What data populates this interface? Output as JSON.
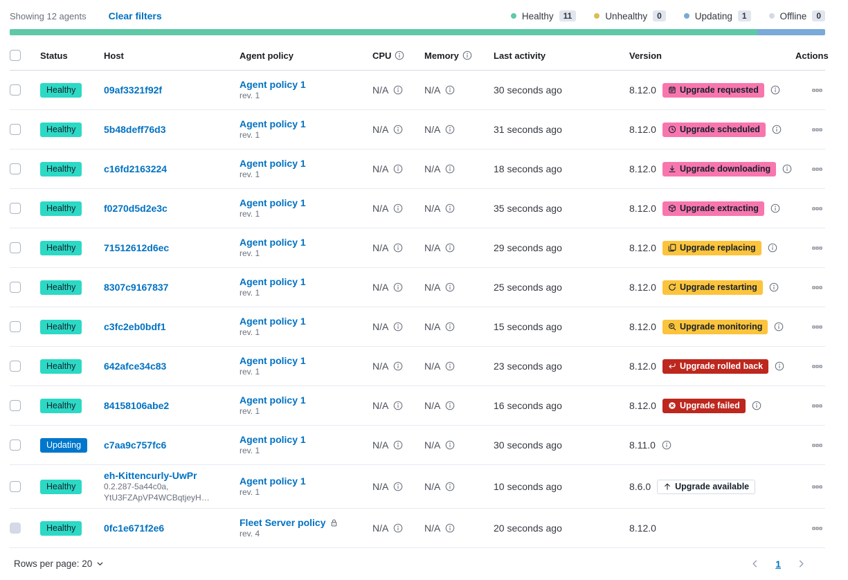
{
  "toolbar": {
    "showing_text": "Showing 12 agents",
    "clear_filters_label": "Clear filters",
    "legend": [
      {
        "label": "Healthy",
        "count": "11",
        "dot_color": "#5FC9A7"
      },
      {
        "label": "Unhealthy",
        "count": "0",
        "dot_color": "#D6BF57"
      },
      {
        "label": "Updating",
        "count": "1",
        "dot_color": "#79AAD9"
      },
      {
        "label": "Offline",
        "count": "0",
        "dot_color": "#D3DAE6"
      }
    ]
  },
  "health_bar": {
    "segments": [
      {
        "status": "healthy",
        "color": "#5FC9A7",
        "weight": 11
      },
      {
        "status": "updating",
        "color": "#79AAD9",
        "weight": 1
      }
    ]
  },
  "icons": {
    "used": [
      "info-icon",
      "calendar-icon",
      "clock-icon",
      "download-icon",
      "package-icon",
      "copy-icon",
      "refresh-icon",
      "inspect-icon",
      "return-icon",
      "error-icon",
      "arrow-up-icon",
      "lock-icon",
      "boxes-horizontal-icon",
      "chevron-down-icon",
      "chevron-left-icon",
      "chevron-right-icon"
    ]
  },
  "colors": {
    "link": "#0071C2",
    "healthy_badge": "#2CD9C5",
    "updating_badge": "#0077CC",
    "upgrade_pink": "#F876AE",
    "upgrade_yellow": "#FCC43C",
    "upgrade_red": "#BD271E"
  },
  "table": {
    "headers": [
      {
        "label": "Status"
      },
      {
        "label": "Host"
      },
      {
        "label": "Agent policy"
      },
      {
        "label": "CPU",
        "info": true
      },
      {
        "label": "Memory",
        "info": true
      },
      {
        "label": "Last activity"
      },
      {
        "label": "Version"
      },
      {
        "label": "Actions"
      }
    ],
    "rows": [
      {
        "status": {
          "label": "Healthy",
          "type": "healthy"
        },
        "host": {
          "name": "09af3321f92f",
          "sub": []
        },
        "policy": {
          "name": "Agent policy 1",
          "revision": "rev. 1",
          "locked": false
        },
        "cpu": "N/A",
        "memory": "N/A",
        "last_activity": "30 seconds ago",
        "version": "8.12.0",
        "version_info": false,
        "upgrade": {
          "label": "Upgrade requested",
          "style": "pink",
          "icon": "calendar"
        },
        "upgrade_info": true,
        "checkbox_disabled": false
      },
      {
        "status": {
          "label": "Healthy",
          "type": "healthy"
        },
        "host": {
          "name": "5b48deff76d3",
          "sub": []
        },
        "policy": {
          "name": "Agent policy 1",
          "revision": "rev. 1",
          "locked": false
        },
        "cpu": "N/A",
        "memory": "N/A",
        "last_activity": "31 seconds ago",
        "version": "8.12.0",
        "version_info": false,
        "upgrade": {
          "label": "Upgrade scheduled",
          "style": "pink",
          "icon": "clock"
        },
        "upgrade_info": true,
        "checkbox_disabled": false
      },
      {
        "status": {
          "label": "Healthy",
          "type": "healthy"
        },
        "host": {
          "name": "c16fd2163224",
          "sub": []
        },
        "policy": {
          "name": "Agent policy 1",
          "revision": "rev. 1",
          "locked": false
        },
        "cpu": "N/A",
        "memory": "N/A",
        "last_activity": "18 seconds ago",
        "version": "8.12.0",
        "version_info": false,
        "upgrade": {
          "label": "Upgrade downloading",
          "style": "pink",
          "icon": "download"
        },
        "upgrade_info": true,
        "checkbox_disabled": false
      },
      {
        "status": {
          "label": "Healthy",
          "type": "healthy"
        },
        "host": {
          "name": "f0270d5d2e3c",
          "sub": []
        },
        "policy": {
          "name": "Agent policy 1",
          "revision": "rev. 1",
          "locked": false
        },
        "cpu": "N/A",
        "memory": "N/A",
        "last_activity": "35 seconds ago",
        "version": "8.12.0",
        "version_info": false,
        "upgrade": {
          "label": "Upgrade extracting",
          "style": "pink",
          "icon": "package"
        },
        "upgrade_info": true,
        "checkbox_disabled": false
      },
      {
        "status": {
          "label": "Healthy",
          "type": "healthy"
        },
        "host": {
          "name": "71512612d6ec",
          "sub": []
        },
        "policy": {
          "name": "Agent policy 1",
          "revision": "rev. 1",
          "locked": false
        },
        "cpu": "N/A",
        "memory": "N/A",
        "last_activity": "29 seconds ago",
        "version": "8.12.0",
        "version_info": false,
        "upgrade": {
          "label": "Upgrade replacing",
          "style": "yellow",
          "icon": "copy"
        },
        "upgrade_info": true,
        "checkbox_disabled": false
      },
      {
        "status": {
          "label": "Healthy",
          "type": "healthy"
        },
        "host": {
          "name": "8307c9167837",
          "sub": []
        },
        "policy": {
          "name": "Agent policy 1",
          "revision": "rev. 1",
          "locked": false
        },
        "cpu": "N/A",
        "memory": "N/A",
        "last_activity": "25 seconds ago",
        "version": "8.12.0",
        "version_info": false,
        "upgrade": {
          "label": "Upgrade restarting",
          "style": "yellow",
          "icon": "refresh"
        },
        "upgrade_info": true,
        "checkbox_disabled": false
      },
      {
        "status": {
          "label": "Healthy",
          "type": "healthy"
        },
        "host": {
          "name": "c3fc2eb0bdf1",
          "sub": []
        },
        "policy": {
          "name": "Agent policy 1",
          "revision": "rev. 1",
          "locked": false
        },
        "cpu": "N/A",
        "memory": "N/A",
        "last_activity": "15 seconds ago",
        "version": "8.12.0",
        "version_info": false,
        "upgrade": {
          "label": "Upgrade monitoring",
          "style": "yellow",
          "icon": "inspect"
        },
        "upgrade_info": true,
        "checkbox_disabled": false
      },
      {
        "status": {
          "label": "Healthy",
          "type": "healthy"
        },
        "host": {
          "name": "642afce34c83",
          "sub": []
        },
        "policy": {
          "name": "Agent policy 1",
          "revision": "rev. 1",
          "locked": false
        },
        "cpu": "N/A",
        "memory": "N/A",
        "last_activity": "23 seconds ago",
        "version": "8.12.0",
        "version_info": false,
        "upgrade": {
          "label": "Upgrade rolled back",
          "style": "red",
          "icon": "return"
        },
        "upgrade_info": true,
        "checkbox_disabled": false
      },
      {
        "status": {
          "label": "Healthy",
          "type": "healthy"
        },
        "host": {
          "name": "84158106abe2",
          "sub": []
        },
        "policy": {
          "name": "Agent policy 1",
          "revision": "rev. 1",
          "locked": false
        },
        "cpu": "N/A",
        "memory": "N/A",
        "last_activity": "16 seconds ago",
        "version": "8.12.0",
        "version_info": false,
        "upgrade": {
          "label": "Upgrade failed",
          "style": "red",
          "icon": "error"
        },
        "upgrade_info": true,
        "checkbox_disabled": false
      },
      {
        "status": {
          "label": "Updating",
          "type": "updating"
        },
        "host": {
          "name": "c7aa9c757fc6",
          "sub": []
        },
        "policy": {
          "name": "Agent policy 1",
          "revision": "rev. 1",
          "locked": false
        },
        "cpu": "N/A",
        "memory": "N/A",
        "last_activity": "30 seconds ago",
        "version": "8.11.0",
        "version_info": true,
        "upgrade": null,
        "upgrade_info": false,
        "checkbox_disabled": false
      },
      {
        "status": {
          "label": "Healthy",
          "type": "healthy"
        },
        "host": {
          "name": "eh-Kittencurly-UwPr",
          "sub": [
            "0.2.287-5a44c0a,",
            "YtU3FZApVP4WCBqtjeyH…"
          ]
        },
        "policy": {
          "name": "Agent policy 1",
          "revision": "rev. 1",
          "locked": false
        },
        "cpu": "N/A",
        "memory": "N/A",
        "last_activity": "10 seconds ago",
        "version": "8.6.0",
        "version_info": false,
        "upgrade": {
          "label": "Upgrade available",
          "style": "outline",
          "icon": "arrow-up"
        },
        "upgrade_info": false,
        "checkbox_disabled": false
      },
      {
        "status": {
          "label": "Healthy",
          "type": "healthy"
        },
        "host": {
          "name": "0fc1e671f2e6",
          "sub": []
        },
        "policy": {
          "name": "Fleet Server policy",
          "revision": "rev. 4",
          "locked": true
        },
        "cpu": "N/A",
        "memory": "N/A",
        "last_activity": "20 seconds ago",
        "version": "8.12.0",
        "version_info": false,
        "upgrade": null,
        "upgrade_info": false,
        "checkbox_disabled": true
      }
    ]
  },
  "footer": {
    "rows_per_page_label": "Rows per page: 20",
    "pagination": {
      "current_page": "1"
    }
  }
}
